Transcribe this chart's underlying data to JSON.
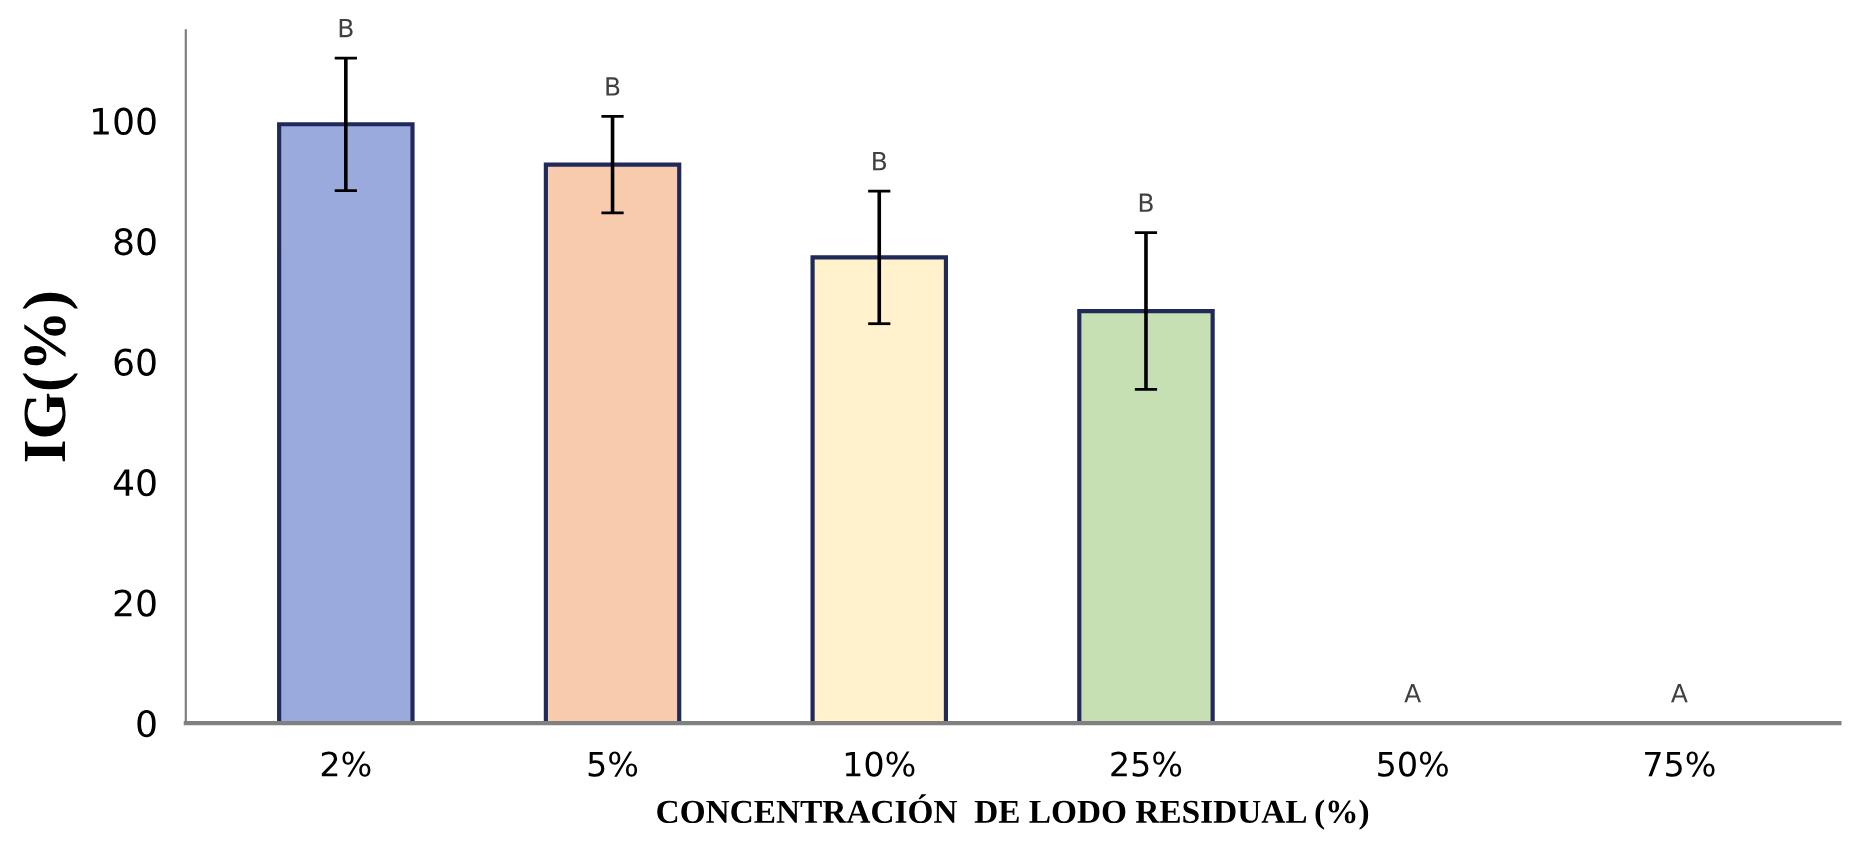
{
  "chart_data": {
    "type": "bar",
    "xlabel": "CONCENTRACIÓN  DE LODO RESIDUAL (%)",
    "ylabel": "IG(%)",
    "categories": [
      "2%",
      "5%",
      "10%",
      "25%",
      "50%",
      "75%"
    ],
    "values": [
      99.4,
      92.7,
      77.3,
      68.4,
      0,
      0
    ],
    "errors": [
      11,
      8,
      11,
      13,
      null,
      null
    ],
    "colors": [
      "#9aaadc",
      "#f8cbad",
      "#fff2cc",
      "#c6e0b4",
      null,
      null
    ],
    "annotations": [
      "B",
      "B",
      "B",
      "B",
      "A",
      "A"
    ],
    "ylim": [
      0,
      115
    ],
    "yticks": [
      0,
      20,
      40,
      60,
      80,
      100
    ],
    "grid": false
  }
}
